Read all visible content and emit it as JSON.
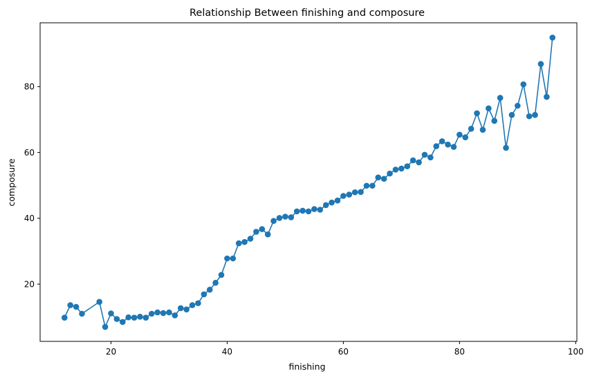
{
  "chart_data": {
    "type": "line",
    "title": "Relationship Between finishing and composure",
    "xlabel": "finishing",
    "ylabel": "composure",
    "xlim": [
      7.8,
      100.2
    ],
    "ylim": [
      2.6,
      99.4
    ],
    "xticks": [
      20,
      40,
      60,
      80,
      100
    ],
    "yticks": [
      20,
      40,
      60,
      80
    ],
    "grid": false,
    "legend": "none",
    "color": "#1f77b4",
    "series": [
      {
        "x": [
          12,
          13,
          14,
          15,
          18,
          19,
          20,
          21,
          22,
          23,
          24,
          25,
          26,
          27,
          28,
          29,
          30,
          31,
          32,
          33,
          34,
          35,
          36,
          37,
          38,
          39,
          40,
          41,
          42,
          43,
          44,
          45,
          46,
          47,
          48,
          49,
          50,
          51,
          52,
          53,
          54,
          55,
          56,
          57,
          58,
          59,
          60,
          61,
          62,
          63,
          64,
          65,
          66,
          67,
          68,
          69,
          70,
          71,
          72,
          73,
          74,
          75,
          76,
          77,
          78,
          79,
          80,
          81,
          82,
          83,
          84,
          85,
          86,
          87,
          88,
          89,
          90,
          91,
          92,
          93,
          94,
          95,
          96
        ],
        "y": [
          9.8,
          13.6,
          13.1,
          11.0,
          14.6,
          7.0,
          11.1,
          9.4,
          8.5,
          9.9,
          9.8,
          10.1,
          9.8,
          11.0,
          11.4,
          11.2,
          11.4,
          10.5,
          12.7,
          12.3,
          13.6,
          14.2,
          16.9,
          18.3,
          20.4,
          22.8,
          27.8,
          27.8,
          32.4,
          32.8,
          33.8,
          35.9,
          36.7,
          35.1,
          39.2,
          40.1,
          40.5,
          40.3,
          42.1,
          42.3,
          42.1,
          42.8,
          42.6,
          44.0,
          44.8,
          45.4,
          46.8,
          47.2,
          47.9,
          48.0,
          49.9,
          49.9,
          52.4,
          52.0,
          53.6,
          54.8,
          55.1,
          55.8,
          57.6,
          57.0,
          59.3,
          58.5,
          61.9,
          63.4,
          62.4,
          61.7,
          65.4,
          64.6,
          67.2,
          71.9,
          66.9,
          73.4,
          69.6,
          76.6,
          61.4,
          71.4,
          74.2,
          80.7,
          71.0,
          71.4,
          86.9,
          76.9,
          94.9
        ]
      }
    ]
  }
}
